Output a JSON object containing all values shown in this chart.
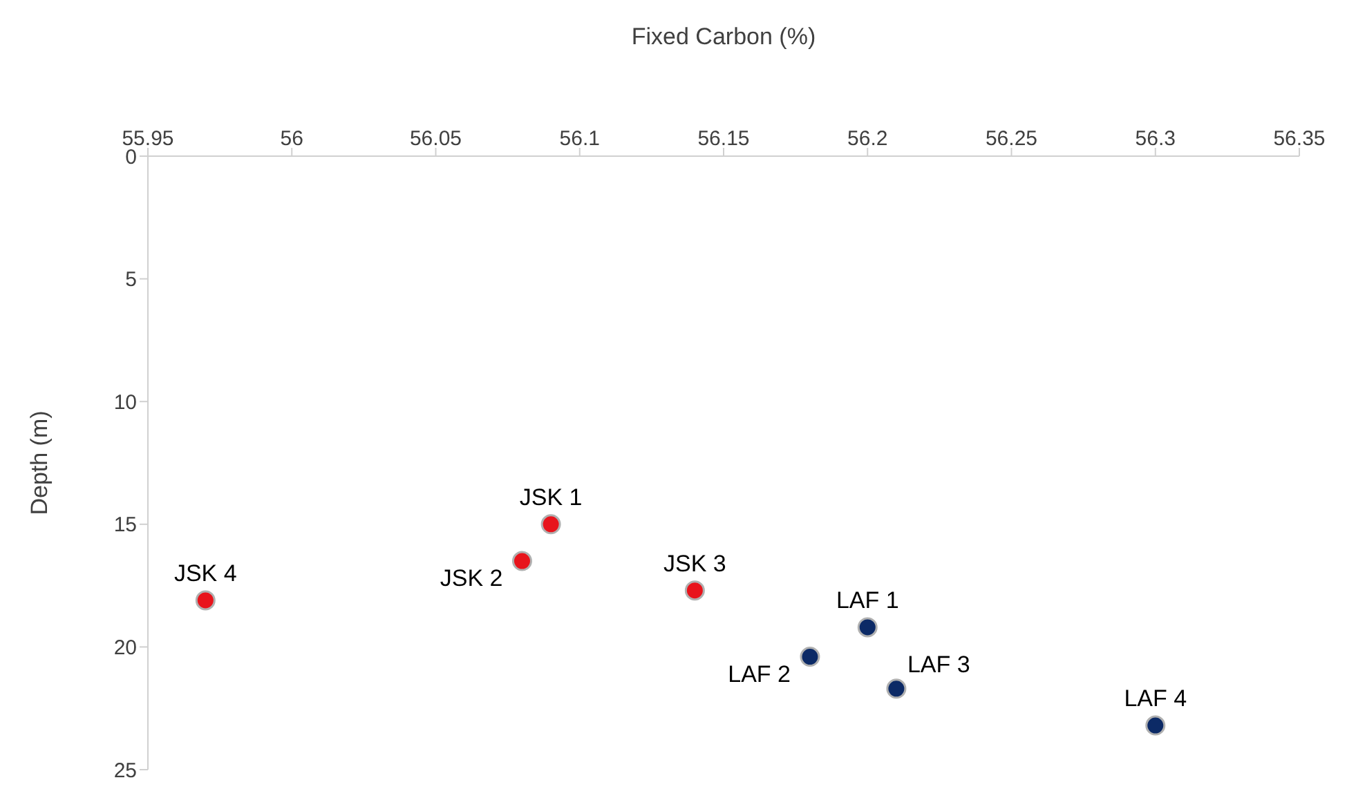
{
  "chart_data": {
    "type": "scatter",
    "xlabel": "Fixed Carbon (%)",
    "ylabel": "Depth (m)",
    "xlim": [
      55.95,
      56.35
    ],
    "xticks": [
      55.95,
      56,
      56.05,
      56.1,
      56.15,
      56.2,
      56.25,
      56.3,
      56.35
    ],
    "ylim": [
      25,
      0
    ],
    "yticks": [
      0,
      5,
      10,
      15,
      20,
      25
    ],
    "marker": "circle",
    "grid": false,
    "legend": false,
    "series": [
      {
        "color": "#e8141c",
        "x": [
          56.09,
          56.08,
          56.14,
          55.97
        ],
        "values": [
          15,
          16.5,
          17.7,
          18.1
        ]
      },
      {
        "color": "#0c2a66",
        "x": [
          56.2,
          56.18,
          56.21,
          56.3
        ],
        "values": [
          19.2,
          20.4,
          21.7,
          23.2
        ]
      }
    ],
    "annotations": [
      {
        "text": "JSK 1",
        "x": 56.09,
        "y": 15
      },
      {
        "text": "JSK 2",
        "x": 56.08,
        "y": 16.5
      },
      {
        "text": "JSK 3",
        "x": 56.14,
        "y": 17.7
      },
      {
        "text": "JSK 4",
        "x": 55.97,
        "y": 18.1
      },
      {
        "text": "LAF 1",
        "x": 56.2,
        "y": 19.2
      },
      {
        "text": "LAF 2",
        "x": 56.18,
        "y": 20.4
      },
      {
        "text": "LAF 3",
        "x": 56.21,
        "y": 21.7
      },
      {
        "text": "LAF 4",
        "x": 56.3,
        "y": 23.2
      }
    ]
  }
}
